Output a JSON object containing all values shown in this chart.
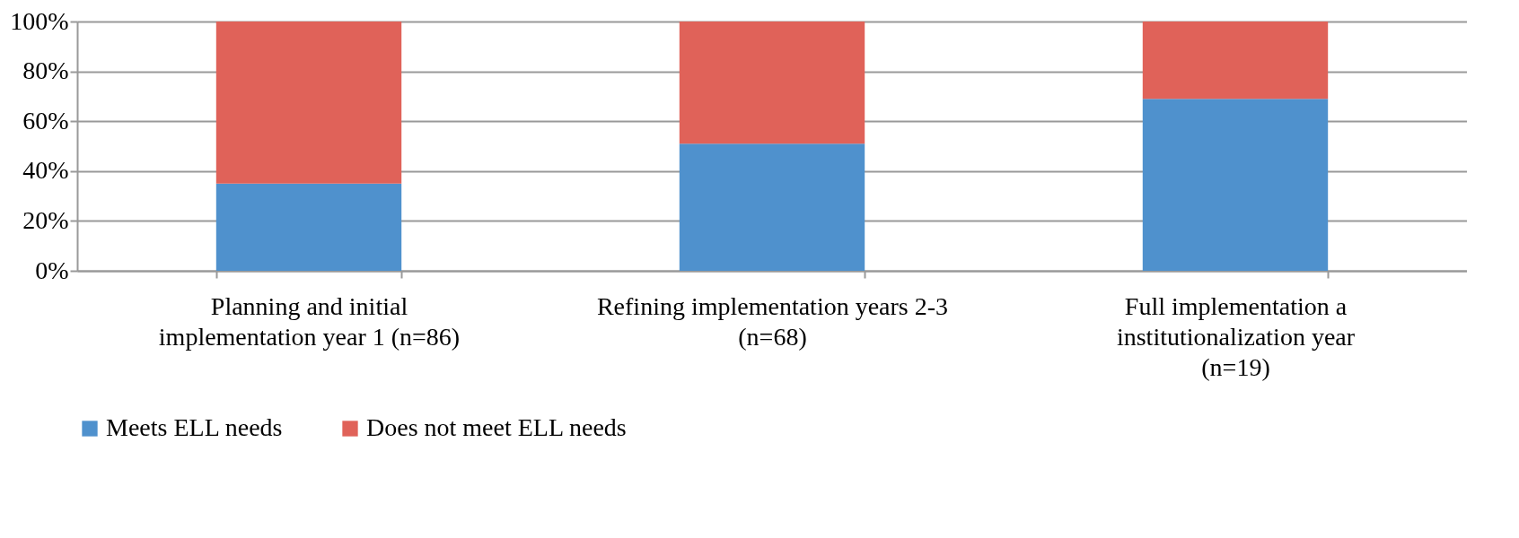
{
  "chart_data": {
    "type": "bar",
    "stacked": true,
    "categories": [
      "Planning and initial\nimplementation year 1 (n=86)",
      "Refining implementation years 2-3\n(n=68)",
      "Full implementation a\ninstitutionalization year\n(n=19)"
    ],
    "series": [
      {
        "name": "Meets ELL needs",
        "color": "#4f91cd",
        "values": [
          35,
          51,
          69
        ]
      },
      {
        "name": "Does not meet ELL needs",
        "color": "#e06259",
        "values": [
          65,
          49,
          31
        ]
      }
    ],
    "ylim": [
      0,
      100
    ],
    "yticks": [
      {
        "value": 0,
        "label": "0%"
      },
      {
        "value": 20,
        "label": "20%"
      },
      {
        "value": 40,
        "label": "40%"
      },
      {
        "value": 60,
        "label": "60%"
      },
      {
        "value": 80,
        "label": "80%"
      },
      {
        "value": 100,
        "label": "100%"
      }
    ],
    "grid": "y",
    "legend": "bottom"
  }
}
